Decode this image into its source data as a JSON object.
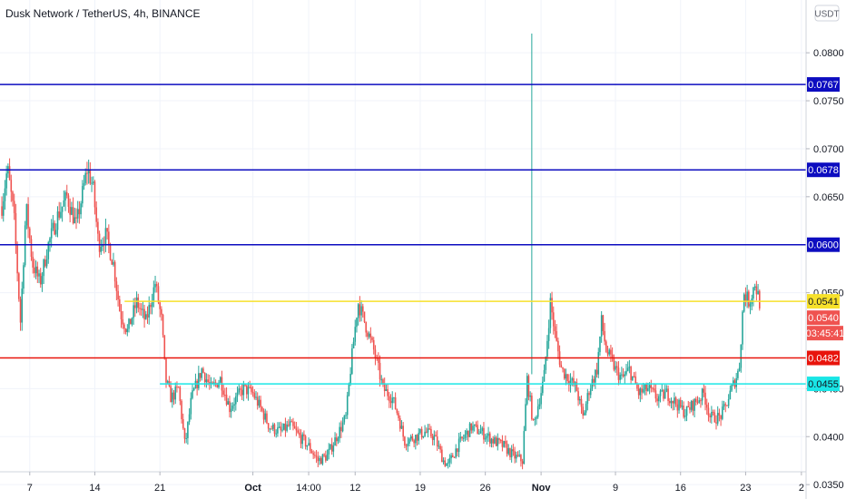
{
  "chart_data": {
    "type": "candlestick",
    "title": "Dusk Network / TetherUS, 4h, BINANCE",
    "currency_button": "USDT",
    "ylim": [
      0.0335,
      0.0855
    ],
    "y_ticks": [
      "0.0800",
      "0.0750",
      "0.0700",
      "0.0650",
      "0.0550",
      "0.0450",
      "0.0400",
      "0.0350"
    ],
    "x_ticks": [
      {
        "label": "7",
        "day": 7,
        "bold": false
      },
      {
        "label": "14",
        "day": 14,
        "bold": false
      },
      {
        "label": "21",
        "day": 21,
        "bold": false
      },
      {
        "label": "Oct",
        "day": 31,
        "bold": true
      },
      {
        "label": "14:00",
        "day": 37,
        "bold": false
      },
      {
        "label": "12",
        "day": 42,
        "bold": false
      },
      {
        "label": "19",
        "day": 49,
        "bold": false
      },
      {
        "label": "26",
        "day": 56,
        "bold": false
      },
      {
        "label": "Nov",
        "day": 62,
        "bold": true
      },
      {
        "label": "9",
        "day": 70,
        "bold": false
      },
      {
        "label": "16",
        "day": 77,
        "bold": false
      },
      {
        "label": "23",
        "day": 84,
        "bold": false
      },
      {
        "label": "2",
        "day": 90,
        "bold": false
      }
    ],
    "x_day_range": [
      3.8,
      90.5
    ],
    "last_day": 85.5,
    "price_path": [
      [
        4.0,
        0.064
      ],
      [
        4.6,
        0.068
      ],
      [
        5.3,
        0.063
      ],
      [
        6.0,
        0.052
      ],
      [
        6.6,
        0.064
      ],
      [
        7.3,
        0.058
      ],
      [
        8.1,
        0.056
      ],
      [
        9.0,
        0.06
      ],
      [
        10.0,
        0.063
      ],
      [
        11.0,
        0.065
      ],
      [
        12.0,
        0.062
      ],
      [
        13.2,
        0.068
      ],
      [
        13.8,
        0.066
      ],
      [
        14.4,
        0.06
      ],
      [
        15.2,
        0.061
      ],
      [
        16.0,
        0.058
      ],
      [
        16.7,
        0.053
      ],
      [
        17.5,
        0.051
      ],
      [
        18.5,
        0.054
      ],
      [
        19.5,
        0.052
      ],
      [
        20.5,
        0.056
      ],
      [
        21.2,
        0.052
      ],
      [
        21.6,
        0.046
      ],
      [
        22.2,
        0.044
      ],
      [
        23.0,
        0.045
      ],
      [
        23.7,
        0.039
      ],
      [
        24.4,
        0.044
      ],
      [
        25.5,
        0.047
      ],
      [
        26.5,
        0.045
      ],
      [
        27.5,
        0.046
      ],
      [
        28.5,
        0.043
      ],
      [
        29.2,
        0.044
      ],
      [
        30.0,
        0.045
      ],
      [
        31.0,
        0.0445
      ],
      [
        31.8,
        0.043
      ],
      [
        32.8,
        0.041
      ],
      [
        34.0,
        0.0405
      ],
      [
        35.0,
        0.0412
      ],
      [
        36.0,
        0.04
      ],
      [
        37.0,
        0.039
      ],
      [
        38.0,
        0.0375
      ],
      [
        39.0,
        0.038
      ],
      [
        40.0,
        0.04
      ],
      [
        41.0,
        0.042
      ],
      [
        41.5,
        0.047
      ],
      [
        42.3,
        0.054
      ],
      [
        43.0,
        0.052
      ],
      [
        44.0,
        0.049
      ],
      [
        45.0,
        0.045
      ],
      [
        46.0,
        0.044
      ],
      [
        46.7,
        0.042
      ],
      [
        47.3,
        0.0395
      ],
      [
        48.5,
        0.04
      ],
      [
        49.5,
        0.0405
      ],
      [
        50.5,
        0.04
      ],
      [
        51.5,
        0.0375
      ],
      [
        52.0,
        0.037
      ],
      [
        53.0,
        0.039
      ],
      [
        54.5,
        0.041
      ],
      [
        55.5,
        0.0405
      ],
      [
        57.0,
        0.0395
      ],
      [
        58.0,
        0.039
      ],
      [
        59.0,
        0.038
      ],
      [
        60.0,
        0.0375
      ],
      [
        60.5,
        0.046
      ],
      [
        61.2,
        0.041
      ],
      [
        61.6,
        0.043
      ],
      [
        62.3,
        0.046
      ],
      [
        63.0,
        0.054
      ],
      [
        63.6,
        0.05
      ],
      [
        64.2,
        0.047
      ],
      [
        65.0,
        0.046
      ],
      [
        65.8,
        0.045
      ],
      [
        66.5,
        0.042
      ],
      [
        67.2,
        0.045
      ],
      [
        68.0,
        0.047
      ],
      [
        68.5,
        0.052
      ],
      [
        69.0,
        0.049
      ],
      [
        70.0,
        0.047
      ],
      [
        70.7,
        0.046
      ],
      [
        71.5,
        0.047
      ],
      [
        72.5,
        0.0445
      ],
      [
        73.5,
        0.045
      ],
      [
        74.5,
        0.044
      ],
      [
        75.5,
        0.0445
      ],
      [
        76.5,
        0.0435
      ],
      [
        77.5,
        0.0425
      ],
      [
        78.5,
        0.0435
      ],
      [
        79.5,
        0.0445
      ],
      [
        80.2,
        0.042
      ],
      [
        81.2,
        0.042
      ],
      [
        81.8,
        0.043
      ],
      [
        82.5,
        0.045
      ],
      [
        83.3,
        0.047
      ],
      [
        83.8,
        0.055
      ],
      [
        84.4,
        0.054
      ],
      [
        85.0,
        0.056
      ],
      [
        85.5,
        0.054
      ]
    ],
    "extreme_wicks": [
      {
        "day": 61.0,
        "low": 0.0465,
        "high": 0.082
      }
    ],
    "horizontal_levels": [
      {
        "value": 0.0767,
        "label": "0.0767",
        "color": "#0d0dc0",
        "label_color": "#ffffff",
        "start_day": 3.8
      },
      {
        "value": 0.0678,
        "label": "0.0678",
        "color": "#0d0dc0",
        "label_color": "#ffffff",
        "start_day": 3.8
      },
      {
        "value": 0.06,
        "label": "0.0600",
        "color": "#0d0dc0",
        "label_color": "#ffffff",
        "start_day": 3.8
      },
      {
        "value": 0.0541,
        "label": "0.0541",
        "color": "#f7e12b",
        "label_color": "#131722",
        "start_day": 17.2
      },
      {
        "value": 0.0482,
        "label": "0.0482",
        "color": "#e8140c",
        "label_color": "#ffffff",
        "start_day": 3.8
      },
      {
        "value": 0.0455,
        "label": "0.0455",
        "color": "#19e6e6",
        "label_color": "#131722",
        "start_day": 21.0
      }
    ],
    "last_price": {
      "value": 0.054,
      "label": "0.0540",
      "color": "#ef5350"
    },
    "countdown": {
      "label": "03:45:41",
      "color": "#ef5350"
    },
    "colors": {
      "up": "#26a69a",
      "down": "#ef5350",
      "grid": "#f0f3fa",
      "axis_text": "#131722"
    }
  }
}
